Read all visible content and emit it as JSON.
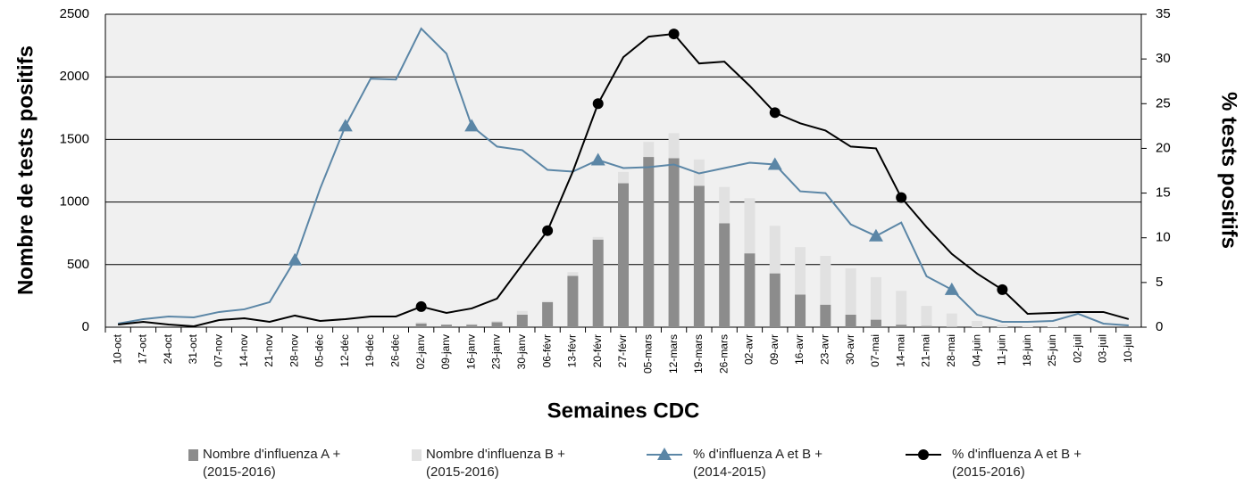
{
  "chart_data": {
    "type": "combo",
    "x_label": "Semaines CDC",
    "y_label": "Nombre de tests positifs",
    "y2_label": "% tests positifs",
    "categories": [
      "10-oct",
      "17-oct",
      "24-oct",
      "31-oct",
      "07-nov",
      "14-nov",
      "21-nov",
      "28-nov",
      "05-déc",
      "12-déc",
      "19-déc",
      "26-déc",
      "02-janv",
      "09-janv",
      "16-janv",
      "23-janv",
      "30-janv",
      "06-févr",
      "13-févr",
      "20-févr",
      "27-févr",
      "05-mars",
      "12-mars",
      "19-mars",
      "26-mars",
      "02-avr",
      "09-avr",
      "16-avr",
      "23-avr",
      "30-avr",
      "07-mai",
      "14-mai",
      "21-mai",
      "28-mai",
      "04-juin",
      "11-juin",
      "18-juin",
      "25-juin",
      "02-juil",
      "03-juil",
      "10-juil"
    ],
    "stacked": true,
    "series": [
      {
        "name": "Nombre d'influenza A + (2015-2016)",
        "type": "bar",
        "color": "#8c8c8c",
        "values": [
          0,
          0,
          0,
          0,
          0,
          0,
          0,
          0,
          0,
          0,
          0,
          0,
          30,
          20,
          20,
          40,
          100,
          200,
          410,
          700,
          1150,
          1360,
          1350,
          1130,
          830,
          590,
          430,
          260,
          180,
          100,
          60,
          20,
          10,
          5,
          0,
          0,
          0,
          0,
          0,
          0,
          0
        ]
      },
      {
        "name": "Nombre d'influenza B + (2015-2016)",
        "type": "bar",
        "color": "#e1e1e1",
        "values": [
          0,
          0,
          0,
          0,
          0,
          0,
          0,
          0,
          0,
          0,
          0,
          0,
          10,
          0,
          5,
          10,
          30,
          10,
          30,
          20,
          90,
          120,
          200,
          210,
          290,
          440,
          380,
          380,
          390,
          370,
          340,
          270,
          160,
          105,
          50,
          20,
          10,
          5,
          0,
          0,
          0
        ]
      },
      {
        "name": "% d'influenza A et B + (2014-2015)",
        "type": "line",
        "axis": "y2",
        "color": "#5b86a6",
        "marker": "triangle",
        "marker_indices": [
          7,
          9,
          14,
          19,
          26,
          30,
          33
        ],
        "values": [
          0.4,
          0.9,
          1.2,
          1.1,
          1.7,
          2.0,
          2.8,
          7.5,
          15.5,
          22.5,
          27.8,
          27.7,
          33.4,
          30.6,
          22.5,
          20.2,
          19.8,
          17.6,
          17.4,
          18.7,
          17.8,
          17.9,
          18.2,
          17.2,
          17.8,
          18.4,
          18.2,
          15.2,
          15.0,
          11.5,
          10.2,
          11.7,
          5.7,
          4.2,
          1.4,
          0.6,
          0.6,
          0.7,
          1.5,
          0.4,
          0.2
        ]
      },
      {
        "name": "% d'influenza A et B + (2015-2016)",
        "type": "line",
        "axis": "y2",
        "color": "#000000",
        "marker": "circle",
        "marker_indices": [
          12,
          17,
          19,
          22,
          26,
          31,
          35
        ],
        "values": [
          0.3,
          0.6,
          0.3,
          0.1,
          0.8,
          1.0,
          0.6,
          1.3,
          0.7,
          0.9,
          1.2,
          1.2,
          2.3,
          1.6,
          2.1,
          3.2,
          7.0,
          10.8,
          17.4,
          25.0,
          30.2,
          32.5,
          32.8,
          29.5,
          29.7,
          27.0,
          24.0,
          22.8,
          22.0,
          20.2,
          20.0,
          14.5,
          11.2,
          8.2,
          6.0,
          4.2,
          1.5,
          1.6,
          1.7,
          1.7,
          0.9
        ]
      }
    ],
    "ylim": [
      0,
      2500
    ],
    "yticks": [
      0,
      500,
      1000,
      1500,
      2000,
      2500
    ],
    "y2lim": [
      0,
      35
    ],
    "y2ticks": [
      0,
      5,
      10,
      15,
      20,
      25,
      30,
      35
    ],
    "grid": true
  }
}
